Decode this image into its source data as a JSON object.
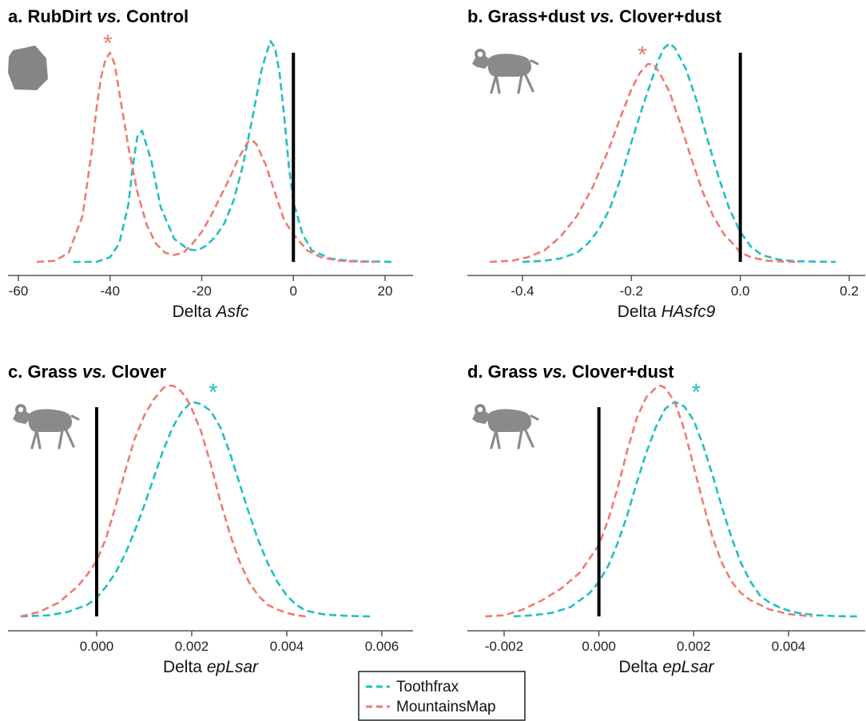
{
  "figure": {
    "legend": {
      "entries": [
        {
          "label": "Toothfrax",
          "color": "#1fbfc4"
        },
        {
          "label": "MountainsMap",
          "color": "#f07a73"
        }
      ],
      "placement": "bottom-center"
    }
  },
  "chart_data": [
    {
      "type": "area",
      "panel": "a",
      "title_parts": [
        "a. RubDirt ",
        "vs.",
        " Control"
      ],
      "xlabel_parts": [
        "Delta ",
        "Asfc"
      ],
      "xlim": [
        -61,
        26
      ],
      "xticks": [
        -60,
        -40,
        -20,
        0,
        20
      ],
      "xtick_labels": [
        "-60",
        "-40",
        "-20",
        "0",
        "20"
      ],
      "zero_line": 0,
      "icon": "rock-icon",
      "significance": {
        "series": "MountainsMap",
        "x": -40.5,
        "color": "#f07a73"
      },
      "series": [
        {
          "name": "Toothfrax",
          "color": "#1fbfc4",
          "x": [
            -48,
            -43,
            -40,
            -38,
            -36,
            -35,
            -34,
            -33,
            -31,
            -29,
            -26,
            -23,
            -21,
            -19,
            -17,
            -15,
            -13,
            -11,
            -9,
            -7,
            -6,
            -5,
            -4,
            -3,
            -2,
            -1,
            0,
            2,
            4,
            8,
            12,
            16,
            22
          ],
          "y": [
            0,
            0,
            0.02,
            0.08,
            0.25,
            0.42,
            0.55,
            0.57,
            0.44,
            0.24,
            0.1,
            0.055,
            0.05,
            0.07,
            0.11,
            0.17,
            0.27,
            0.42,
            0.62,
            0.83,
            0.9,
            0.96,
            0.93,
            0.82,
            0.63,
            0.42,
            0.26,
            0.12,
            0.05,
            0.015,
            0.005,
            0.002,
            0
          ]
        },
        {
          "name": "MountainsMap",
          "color": "#f07a73",
          "x": [
            -56,
            -52,
            -49,
            -46,
            -44,
            -43,
            -42,
            -41,
            -40,
            -39,
            -38,
            -36,
            -34,
            -32,
            -30,
            -28,
            -26,
            -24,
            -22,
            -20,
            -18,
            -16,
            -14,
            -12,
            -10,
            -9,
            -8,
            -6,
            -4,
            -2,
            0,
            3,
            6,
            10,
            14,
            18
          ],
          "y": [
            0,
            0.005,
            0.04,
            0.2,
            0.48,
            0.66,
            0.8,
            0.88,
            0.91,
            0.86,
            0.74,
            0.5,
            0.3,
            0.16,
            0.08,
            0.04,
            0.03,
            0.04,
            0.08,
            0.13,
            0.2,
            0.28,
            0.36,
            0.45,
            0.52,
            0.53,
            0.51,
            0.42,
            0.3,
            0.18,
            0.12,
            0.05,
            0.02,
            0.005,
            0.001,
            0
          ]
        }
      ]
    },
    {
      "type": "area",
      "panel": "b",
      "title_parts": [
        "b. Grass+dust ",
        "vs.",
        " Clover+dust"
      ],
      "xlabel_parts": [
        "Delta ",
        "HAsfc9"
      ],
      "xlim": [
        -0.48,
        0.21
      ],
      "xticks": [
        -0.4,
        -0.2,
        0.0,
        0.2
      ],
      "xtick_labels": [
        "-0.4",
        "-0.2",
        "0.0",
        "0.2"
      ],
      "zero_line": 0,
      "icon": "sheep-icon",
      "significance": {
        "series": "MountainsMap",
        "x": -0.18,
        "color": "#f07a73"
      },
      "series": [
        {
          "name": "Toothfrax",
          "color": "#1fbfc4",
          "x": [
            -0.4,
            -0.36,
            -0.33,
            -0.3,
            -0.28,
            -0.26,
            -0.24,
            -0.22,
            -0.2,
            -0.18,
            -0.16,
            -0.15,
            -0.14,
            -0.13,
            -0.12,
            -0.1,
            -0.08,
            -0.06,
            -0.04,
            -0.02,
            0.0,
            0.02,
            0.04,
            0.07,
            0.1,
            0.14,
            0.175
          ],
          "y": [
            0,
            0.005,
            0.015,
            0.04,
            0.08,
            0.14,
            0.23,
            0.36,
            0.52,
            0.67,
            0.81,
            0.88,
            0.93,
            0.95,
            0.93,
            0.84,
            0.7,
            0.53,
            0.37,
            0.23,
            0.13,
            0.065,
            0.03,
            0.01,
            0.003,
            0.001,
            0
          ]
        },
        {
          "name": "MountainsMap",
          "color": "#f07a73",
          "x": [
            -0.46,
            -0.42,
            -0.39,
            -0.36,
            -0.33,
            -0.3,
            -0.27,
            -0.24,
            -0.22,
            -0.2,
            -0.185,
            -0.17,
            -0.16,
            -0.15,
            -0.13,
            -0.11,
            -0.09,
            -0.07,
            -0.05,
            -0.03,
            -0.01,
            0.0,
            0.02,
            0.05,
            0.08,
            0.11
          ],
          "y": [
            0,
            0.005,
            0.02,
            0.05,
            0.11,
            0.2,
            0.33,
            0.5,
            0.63,
            0.75,
            0.82,
            0.86,
            0.86,
            0.83,
            0.74,
            0.6,
            0.45,
            0.31,
            0.2,
            0.12,
            0.07,
            0.04,
            0.02,
            0.005,
            0.001,
            0
          ]
        }
      ]
    },
    {
      "type": "area",
      "panel": "c",
      "title_parts": [
        "c. Grass ",
        "vs.",
        " Clover"
      ],
      "xlabel_parts": [
        "Delta ",
        "epLsar"
      ],
      "xlim": [
        -0.002,
        0.0069
      ],
      "xticks": [
        0.0,
        0.002,
        0.004,
        0.006
      ],
      "xtick_labels": [
        "0.000",
        "0.002",
        "0.004",
        "0.006"
      ],
      "zero_line": 0,
      "icon": "sheep-icon",
      "significance": {
        "series": "Toothfrax",
        "x": 0.00245,
        "color": "#1fbfc4"
      },
      "series": [
        {
          "name": "Toothfrax",
          "color": "#1fbfc4",
          "x": [
            -0.0016,
            -0.001,
            -0.0006,
            -0.0002,
            0.0,
            0.0002,
            0.0004,
            0.0006,
            0.0008,
            0.001,
            0.0012,
            0.0014,
            0.0016,
            0.0018,
            0.002,
            0.0022,
            0.0024,
            0.0026,
            0.0028,
            0.003,
            0.0032,
            0.0034,
            0.0036,
            0.0038,
            0.004,
            0.0042,
            0.0044,
            0.0048,
            0.0053,
            0.0058
          ],
          "y": [
            0,
            0.005,
            0.02,
            0.05,
            0.08,
            0.13,
            0.19,
            0.27,
            0.37,
            0.48,
            0.6,
            0.72,
            0.82,
            0.89,
            0.93,
            0.92,
            0.89,
            0.82,
            0.71,
            0.58,
            0.45,
            0.33,
            0.23,
            0.15,
            0.09,
            0.05,
            0.025,
            0.008,
            0.002,
            0
          ]
        },
        {
          "name": "MountainsMap",
          "color": "#f07a73",
          "x": [
            -0.0016,
            -0.0012,
            -0.0008,
            -0.0004,
            -0.0002,
            0.0,
            0.0002,
            0.0004,
            0.0006,
            0.0008,
            0.001,
            0.0012,
            0.0014,
            0.0015,
            0.0016,
            0.0017,
            0.0018,
            0.0019,
            0.002,
            0.0022,
            0.0024,
            0.0026,
            0.0028,
            0.003,
            0.0032,
            0.0034,
            0.0036,
            0.0038,
            0.004,
            0.0042,
            0.0044
          ],
          "y": [
            0,
            0.02,
            0.06,
            0.13,
            0.18,
            0.24,
            0.34,
            0.48,
            0.63,
            0.77,
            0.87,
            0.94,
            0.99,
            1.0,
            1.0,
            0.99,
            0.97,
            0.94,
            0.9,
            0.8,
            0.66,
            0.5,
            0.36,
            0.24,
            0.15,
            0.09,
            0.05,
            0.03,
            0.015,
            0.005,
            0
          ]
        }
      ]
    },
    {
      "type": "area",
      "panel": "d",
      "title_parts": [
        "d. Grass ",
        "vs.",
        " Clover+dust"
      ],
      "xlabel_parts": [
        "Delta ",
        "epLsar"
      ],
      "xlim": [
        -0.0031,
        0.006
      ],
      "xticks": [
        -0.002,
        0.0,
        0.002,
        0.004
      ],
      "xtick_labels": [
        "-0.002",
        "0.000",
        "0.002",
        "0.004"
      ],
      "zero_line": 0,
      "icon": "sheep-icon",
      "significance": {
        "series": "Toothfrax",
        "x": 0.00205,
        "color": "#1fbfc4"
      },
      "series": [
        {
          "name": "Toothfrax",
          "color": "#1fbfc4",
          "x": [
            -0.0018,
            -0.0014,
            -0.001,
            -0.0006,
            -0.0002,
            0.0,
            0.0002,
            0.0004,
            0.0006,
            0.0008,
            0.001,
            0.0012,
            0.0014,
            0.0016,
            0.0018,
            0.002,
            0.0022,
            0.0024,
            0.0026,
            0.0028,
            0.003,
            0.0032,
            0.0034,
            0.0036,
            0.0038,
            0.004,
            0.0042,
            0.0046,
            0.005,
            0.0055
          ],
          "y": [
            0,
            0.005,
            0.015,
            0.04,
            0.1,
            0.15,
            0.22,
            0.32,
            0.44,
            0.58,
            0.71,
            0.82,
            0.9,
            0.93,
            0.91,
            0.85,
            0.74,
            0.61,
            0.47,
            0.34,
            0.23,
            0.15,
            0.09,
            0.06,
            0.04,
            0.025,
            0.015,
            0.005,
            0.001,
            0
          ]
        },
        {
          "name": "MountainsMap",
          "color": "#f07a73",
          "x": [
            -0.0024,
            -0.002,
            -0.0016,
            -0.0012,
            -0.0008,
            -0.0004,
            -0.0002,
            0.0,
            0.0002,
            0.0004,
            0.0006,
            0.0008,
            0.001,
            0.0012,
            0.0013,
            0.0014,
            0.0016,
            0.0018,
            0.002,
            0.0022,
            0.0024,
            0.0026,
            0.0028,
            0.003,
            0.0032,
            0.0034,
            0.0036,
            0.004,
            0.0045
          ],
          "y": [
            0,
            0.005,
            0.03,
            0.07,
            0.12,
            0.19,
            0.25,
            0.31,
            0.42,
            0.56,
            0.72,
            0.86,
            0.95,
            0.99,
            1.0,
            0.99,
            0.93,
            0.81,
            0.65,
            0.49,
            0.34,
            0.23,
            0.15,
            0.1,
            0.07,
            0.05,
            0.03,
            0.01,
            0
          ]
        }
      ]
    }
  ]
}
